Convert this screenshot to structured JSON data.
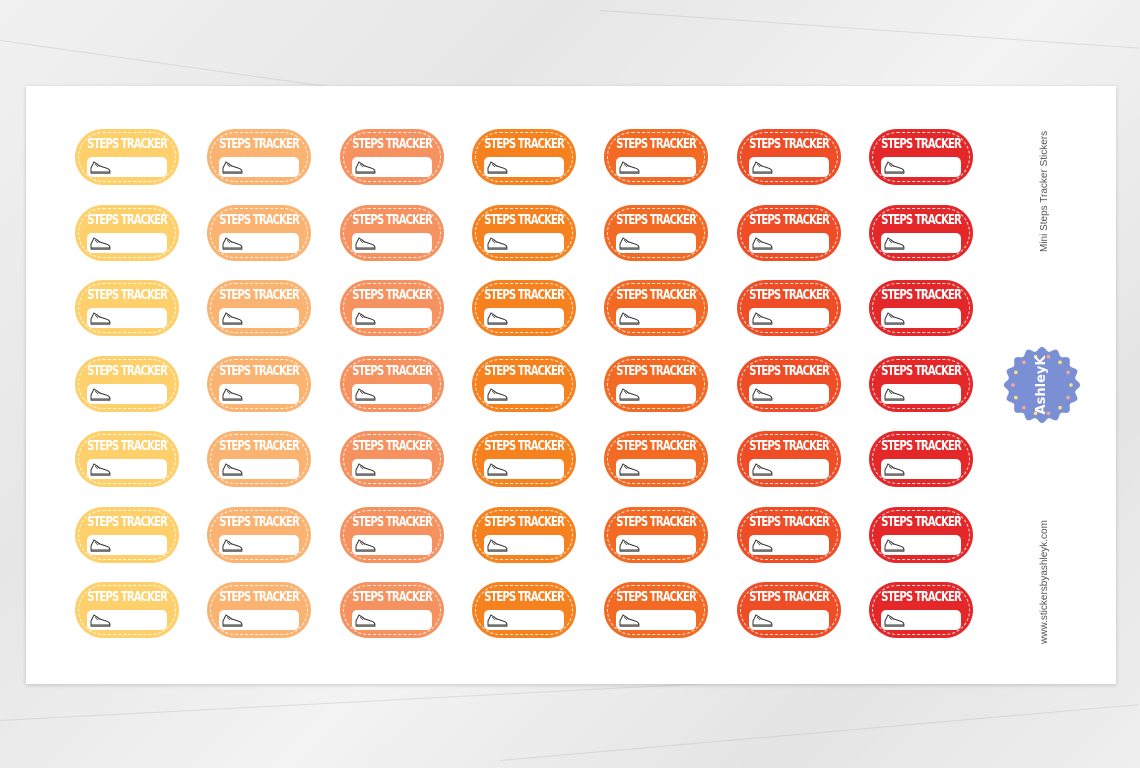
{
  "sheet": {
    "title": "Mini Steps Tracker Stickers",
    "website": "www.stickersbyashleyk.com",
    "logo_text": "by AshleyK",
    "logo_color": "#7b8fd4"
  },
  "sticker": {
    "label": "STEPS TRACKER",
    "icon": "sneaker-icon",
    "rows": 7,
    "column_colors": [
      "#fdd06c",
      "#fbb372",
      "#f5925f",
      "#f5821f",
      "#f26a24",
      "#ee4d26",
      "#e4282a"
    ]
  }
}
